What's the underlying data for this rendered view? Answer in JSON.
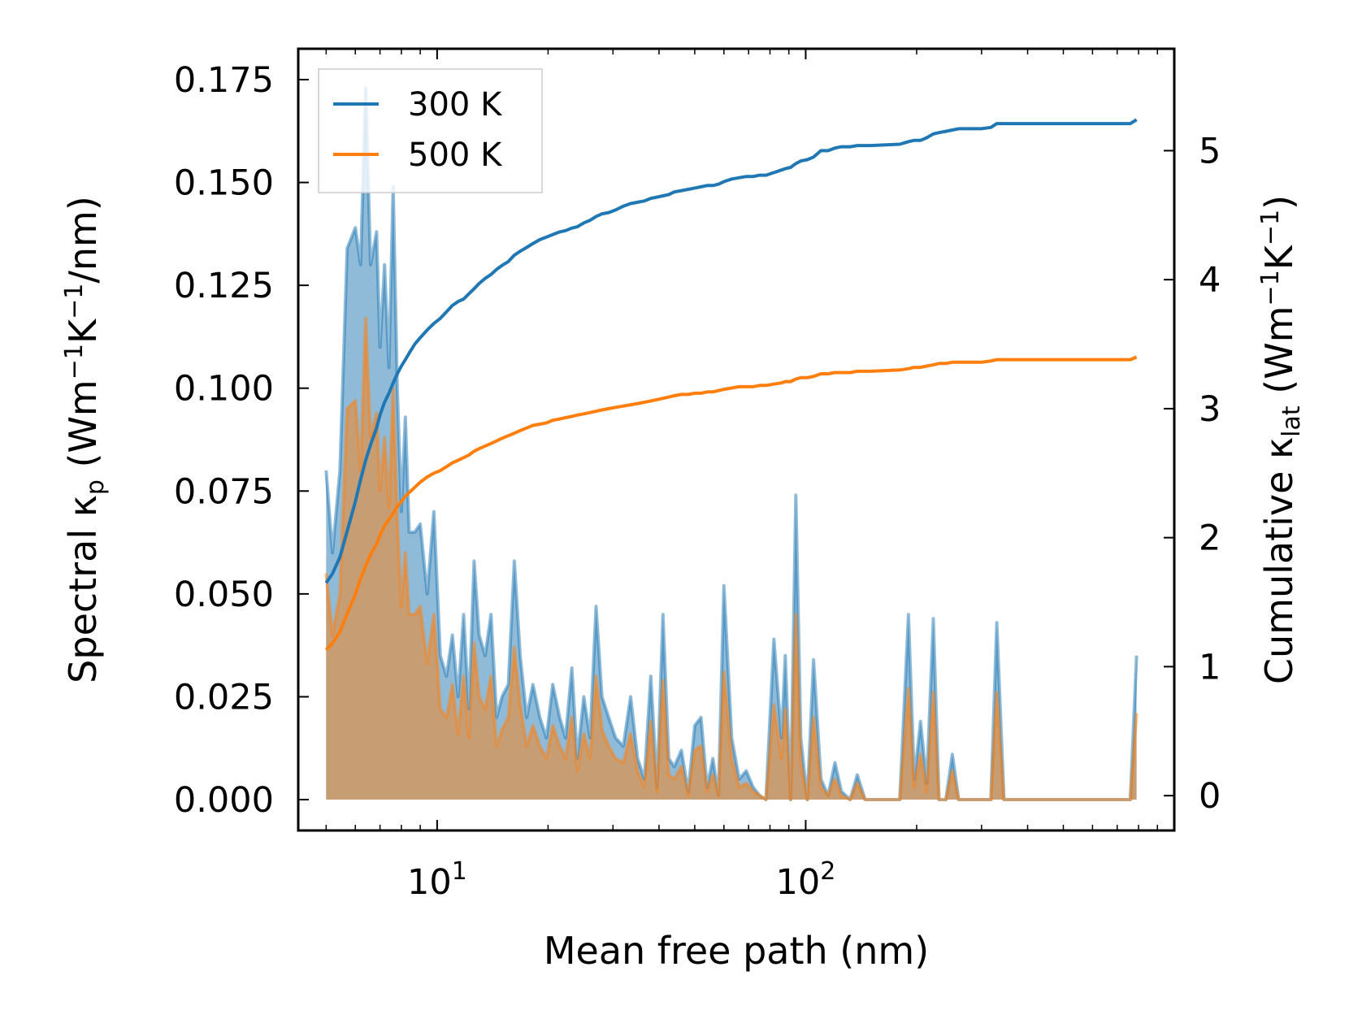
{
  "chart_data": {
    "type": "area+line",
    "xscale": "log",
    "xlim": [
      4.2,
      1000
    ],
    "ylim_left": [
      -0.0075,
      0.1825
    ],
    "ylim_right": [
      -0.27,
      5.79
    ],
    "xlabel": "Mean free path (nm)",
    "ylabel_left": {
      "prefix": "Spectral κ",
      "sub": "p",
      "suffix": " (Wm",
      "sup1": "−1",
      "mid": "K",
      "sup2": "−1",
      "end": "/nm)"
    },
    "ylabel_right": {
      "prefix": "Cumulative κ",
      "sub": "lat",
      "suffix": " (Wm",
      "sup1": "−1",
      "mid": "K",
      "sup2": "−1",
      "end": ")"
    },
    "x_major_ticks": [
      {
        "value": 10,
        "base": "10",
        "exp": "1"
      },
      {
        "value": 100,
        "base": "10",
        "exp": "2"
      }
    ],
    "y_left_ticks": [
      "0.000",
      "0.025",
      "0.050",
      "0.075",
      "0.100",
      "0.125",
      "0.150",
      "0.175"
    ],
    "y_right_ticks": [
      "0",
      "1",
      "2",
      "3",
      "4",
      "5"
    ],
    "legend": {
      "position": "top-left",
      "entries": [
        "300 K",
        "500 K"
      ]
    },
    "colors": {
      "300 K": "#1f77b4",
      "500 K": "#ff7f0e"
    },
    "spectral_x": [
      5.0,
      5.2,
      5.45,
      5.7,
      6.0,
      6.2,
      6.4,
      6.6,
      6.85,
      7.0,
      7.2,
      7.4,
      7.6,
      7.8,
      8.0,
      8.2,
      8.4,
      8.7,
      9.0,
      9.4,
      9.8,
      10.2,
      10.6,
      11.0,
      11.4,
      11.8,
      12.2,
      12.6,
      13.0,
      13.5,
      14.0,
      14.5,
      15.0,
      15.6,
      16.2,
      16.8,
      17.5,
      18.2,
      19.0,
      19.8,
      20.6,
      21.5,
      22.3,
      23.2,
      24.0,
      25.0,
      26.0,
      27.0,
      28.0,
      29.2,
      30.5,
      32.0,
      33.5,
      35.0,
      36.5,
      38.0,
      39.5,
      41.0,
      42.5,
      44.0,
      46.0,
      48.0,
      50.0,
      52.0,
      54.0,
      56.0,
      58.0,
      60.0,
      63.0,
      66.0,
      69.0,
      72.0,
      75.0,
      78.0,
      82.0,
      86.0,
      88.0,
      91.0,
      94.0,
      97.0,
      101.0,
      105.0,
      110.0,
      115.0,
      120.0,
      125.0,
      132.0,
      138.0,
      145.0,
      150.0,
      180.0,
      190.0,
      197.0,
      205.0,
      213.0,
      222.0,
      230.0,
      240.0,
      250.0,
      260.0,
      300.0,
      318.0,
      330.0,
      345.0,
      400.0,
      500.0,
      600.0,
      700.0,
      760.0,
      790.0
    ],
    "series": [
      {
        "name": "300 K",
        "spectral": [
          0.08,
          0.06,
          0.08,
          0.134,
          0.139,
          0.13,
          0.173,
          0.13,
          0.138,
          0.11,
          0.13,
          0.105,
          0.149,
          0.1,
          0.07,
          0.093,
          0.065,
          0.065,
          0.067,
          0.05,
          0.07,
          0.035,
          0.03,
          0.04,
          0.025,
          0.045,
          0.022,
          0.058,
          0.04,
          0.035,
          0.045,
          0.02,
          0.025,
          0.028,
          0.058,
          0.035,
          0.02,
          0.028,
          0.02,
          0.015,
          0.028,
          0.02,
          0.015,
          0.032,
          0.01,
          0.025,
          0.015,
          0.047,
          0.025,
          0.02,
          0.015,
          0.013,
          0.025,
          0.01,
          0.005,
          0.03,
          0.003,
          0.045,
          0.01,
          0.008,
          0.012,
          0.002,
          0.018,
          0.02,
          0.003,
          0.01,
          0.001,
          0.052,
          0.015,
          0.005,
          0.007,
          0.003,
          0.001,
          0.0,
          0.039,
          0.015,
          0.035,
          0.0,
          0.074,
          0.015,
          0.0,
          0.034,
          0.005,
          0.001,
          0.009,
          0.002,
          0.0,
          0.006,
          0.0,
          0.0,
          0.0,
          0.045,
          0.005,
          0.019,
          0.004,
          0.044,
          0.0,
          0.0,
          0.011,
          0.0,
          0.0,
          0.0,
          0.043,
          0.0,
          0.0,
          0.0,
          0.0,
          0.0,
          0.0,
          0.035
        ],
        "cumulative": [
          1.65,
          1.72,
          1.85,
          2.05,
          2.28,
          2.45,
          2.6,
          2.72,
          2.85,
          2.95,
          3.05,
          3.12,
          3.2,
          3.27,
          3.33,
          3.38,
          3.43,
          3.5,
          3.55,
          3.61,
          3.66,
          3.7,
          3.75,
          3.8,
          3.83,
          3.85,
          3.89,
          3.93,
          3.97,
          4.01,
          4.04,
          4.08,
          4.11,
          4.14,
          4.19,
          4.22,
          4.25,
          4.28,
          4.31,
          4.33,
          4.35,
          4.37,
          4.38,
          4.4,
          4.41,
          4.44,
          4.46,
          4.49,
          4.51,
          4.52,
          4.54,
          4.57,
          4.59,
          4.6,
          4.61,
          4.63,
          4.64,
          4.65,
          4.66,
          4.68,
          4.69,
          4.7,
          4.71,
          4.72,
          4.73,
          4.73,
          4.74,
          4.76,
          4.78,
          4.79,
          4.8,
          4.8,
          4.81,
          4.81,
          4.83,
          4.85,
          4.86,
          4.87,
          4.9,
          4.92,
          4.93,
          4.95,
          5.0,
          5.0,
          5.02,
          5.03,
          5.03,
          5.04,
          5.04,
          5.04,
          5.05,
          5.07,
          5.08,
          5.08,
          5.1,
          5.13,
          5.14,
          5.15,
          5.16,
          5.17,
          5.17,
          5.18,
          5.21,
          5.21,
          5.21,
          5.21,
          5.21,
          5.21,
          5.21,
          5.24
        ]
      },
      {
        "name": "500 K",
        "spectral": [
          0.055,
          0.04,
          0.05,
          0.095,
          0.097,
          0.08,
          0.117,
          0.088,
          0.094,
          0.075,
          0.088,
          0.071,
          0.1,
          0.068,
          0.047,
          0.06,
          0.045,
          0.045,
          0.047,
          0.033,
          0.045,
          0.022,
          0.02,
          0.028,
          0.016,
          0.03,
          0.015,
          0.038,
          0.025,
          0.022,
          0.03,
          0.013,
          0.017,
          0.02,
          0.037,
          0.023,
          0.013,
          0.018,
          0.013,
          0.01,
          0.018,
          0.013,
          0.01,
          0.02,
          0.007,
          0.016,
          0.01,
          0.03,
          0.017,
          0.013,
          0.01,
          0.009,
          0.016,
          0.007,
          0.003,
          0.019,
          0.002,
          0.029,
          0.006,
          0.005,
          0.008,
          0.001,
          0.012,
          0.013,
          0.002,
          0.006,
          0.001,
          0.031,
          0.01,
          0.003,
          0.004,
          0.002,
          0.001,
          0.0,
          0.023,
          0.01,
          0.022,
          0.0,
          0.045,
          0.009,
          0.0,
          0.02,
          0.003,
          0.001,
          0.005,
          0.001,
          0.0,
          0.004,
          0.0,
          0.0,
          0.0,
          0.027,
          0.003,
          0.011,
          0.002,
          0.026,
          0.0,
          0.0,
          0.007,
          0.0,
          0.0,
          0.0,
          0.026,
          0.0,
          0.0,
          0.0,
          0.0,
          0.0,
          0.0,
          0.021
        ],
        "cumulative": [
          1.13,
          1.18,
          1.27,
          1.41,
          1.56,
          1.68,
          1.78,
          1.87,
          1.95,
          2.02,
          2.09,
          2.14,
          2.19,
          2.24,
          2.28,
          2.32,
          2.35,
          2.39,
          2.43,
          2.47,
          2.5,
          2.52,
          2.55,
          2.58,
          2.6,
          2.62,
          2.64,
          2.67,
          2.69,
          2.71,
          2.73,
          2.75,
          2.77,
          2.79,
          2.81,
          2.83,
          2.85,
          2.87,
          2.88,
          2.89,
          2.91,
          2.92,
          2.93,
          2.94,
          2.95,
          2.96,
          2.97,
          2.98,
          2.99,
          3.0,
          3.01,
          3.02,
          3.03,
          3.04,
          3.05,
          3.06,
          3.07,
          3.08,
          3.09,
          3.1,
          3.11,
          3.11,
          3.12,
          3.12,
          3.13,
          3.13,
          3.14,
          3.15,
          3.16,
          3.17,
          3.17,
          3.17,
          3.18,
          3.18,
          3.19,
          3.2,
          3.21,
          3.21,
          3.23,
          3.24,
          3.24,
          3.25,
          3.27,
          3.27,
          3.28,
          3.28,
          3.28,
          3.29,
          3.29,
          3.29,
          3.3,
          3.31,
          3.32,
          3.32,
          3.33,
          3.34,
          3.35,
          3.35,
          3.36,
          3.36,
          3.36,
          3.37,
          3.38,
          3.38,
          3.38,
          3.38,
          3.38,
          3.38,
          3.38,
          3.4
        ]
      }
    ]
  }
}
